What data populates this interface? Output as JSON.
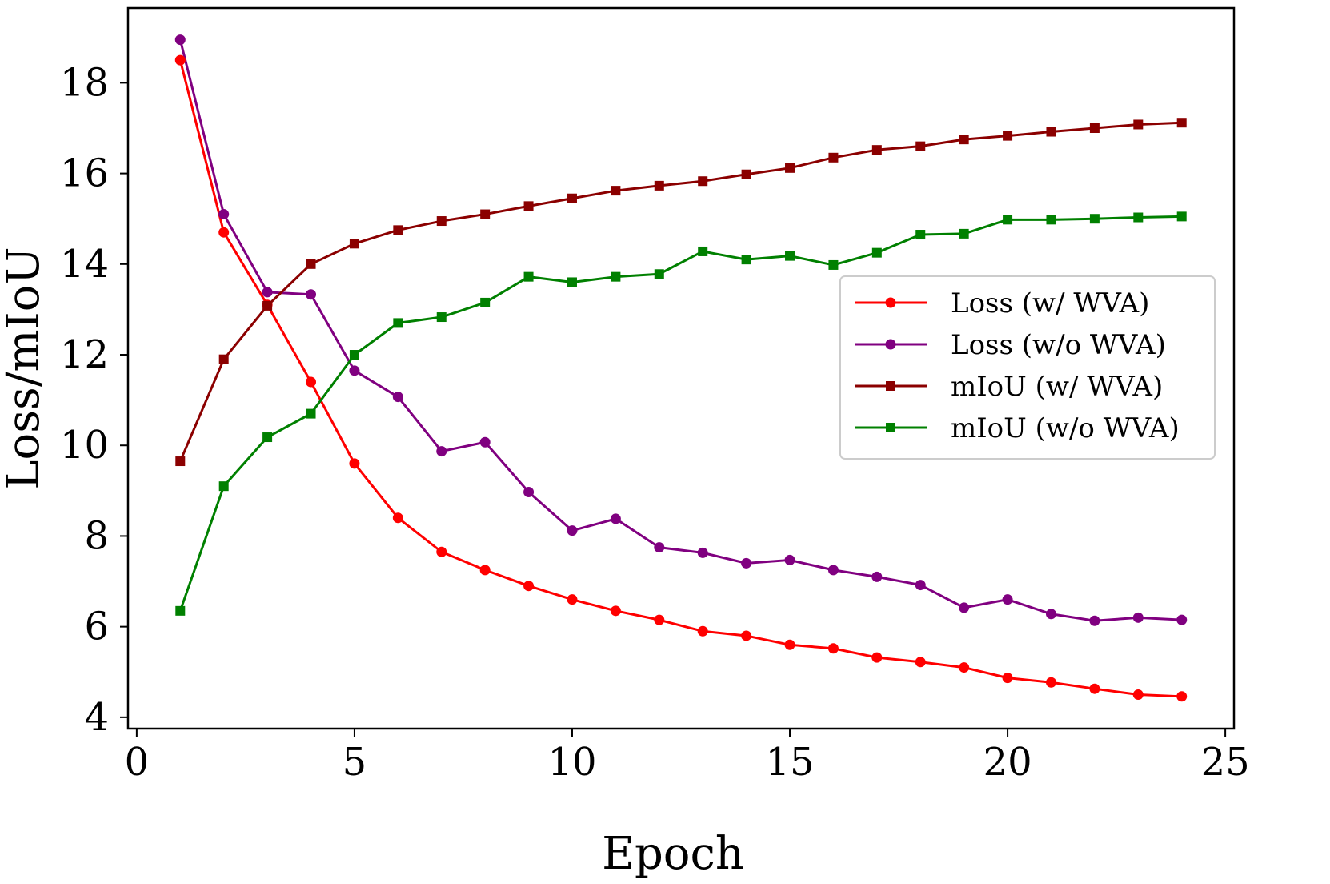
{
  "chart_data": {
    "type": "line",
    "title": "",
    "xlabel": "Epoch",
    "ylabel": "Loss/mIoU",
    "xlim": [
      -0.2,
      25.2
    ],
    "ylim": [
      3.75,
      19.65
    ],
    "xticks": [
      0,
      5,
      10,
      15,
      20,
      25
    ],
    "yticks": [
      4,
      6,
      8,
      10,
      12,
      14,
      16,
      18
    ],
    "grid": false,
    "legend_position": "center-right",
    "x": [
      1,
      2,
      3,
      4,
      5,
      6,
      7,
      8,
      9,
      10,
      11,
      12,
      13,
      14,
      15,
      16,
      17,
      18,
      19,
      20,
      21,
      22,
      23,
      24
    ],
    "series": [
      {
        "name": "Loss (w/ WVA)",
        "color": "#ff0000",
        "marker": "circle",
        "values": [
          18.5,
          14.7,
          13.1,
          11.4,
          9.6,
          8.4,
          7.65,
          7.25,
          6.9,
          6.6,
          6.35,
          6.15,
          5.9,
          5.8,
          5.6,
          5.52,
          5.32,
          5.22,
          5.1,
          4.87,
          4.77,
          4.63,
          4.5,
          4.46
        ]
      },
      {
        "name": "Loss (w/o WVA)",
        "color": "#800080",
        "marker": "circle",
        "values": [
          18.95,
          15.1,
          13.38,
          13.33,
          11.65,
          11.07,
          9.87,
          10.07,
          8.97,
          8.12,
          8.38,
          7.75,
          7.63,
          7.4,
          7.47,
          7.25,
          7.1,
          6.92,
          6.42,
          6.6,
          6.28,
          6.13,
          6.2,
          6.15
        ]
      },
      {
        "name": "mIoU (w/ WVA)",
        "color": "#8b0000",
        "marker": "square",
        "values": [
          9.65,
          11.9,
          13.08,
          14.0,
          14.45,
          14.75,
          14.95,
          15.1,
          15.28,
          15.45,
          15.62,
          15.73,
          15.83,
          15.98,
          16.12,
          16.35,
          16.52,
          16.6,
          16.75,
          16.83,
          16.92,
          17.0,
          17.08,
          17.12
        ]
      },
      {
        "name": "mIoU (w/o WVA)",
        "color": "#008000",
        "marker": "square",
        "values": [
          6.35,
          9.1,
          10.18,
          10.7,
          12.0,
          12.7,
          12.83,
          13.15,
          13.72,
          13.6,
          13.72,
          13.78,
          14.28,
          14.1,
          14.18,
          13.98,
          14.25,
          14.65,
          14.67,
          14.98,
          14.98,
          15.0,
          15.03,
          15.05
        ]
      }
    ]
  }
}
